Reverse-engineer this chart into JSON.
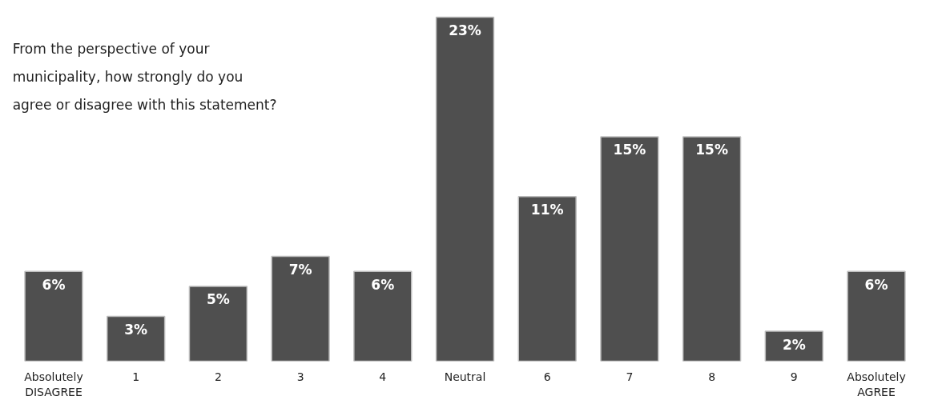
{
  "chart_data": {
    "type": "bar",
    "title": "From the perspective of your municipality, how strongly do you agree or disagree with this statement?",
    "categories": [
      "Absolutely\nDISAGREE",
      "1",
      "2",
      "3",
      "4",
      "Neutral",
      "6",
      "7",
      "8",
      "9",
      "Absolutely\nAGREE"
    ],
    "values": [
      6,
      3,
      5,
      7,
      6,
      23,
      11,
      15,
      15,
      2,
      6
    ],
    "color": "#4f4f4f",
    "value_labels": [
      "6%",
      "3%",
      "5%",
      "7%",
      "6%",
      "23%",
      "11%",
      "15%",
      "15%",
      "2%",
      "6%"
    ],
    "tick_labels": "x",
    "grid": false
  }
}
